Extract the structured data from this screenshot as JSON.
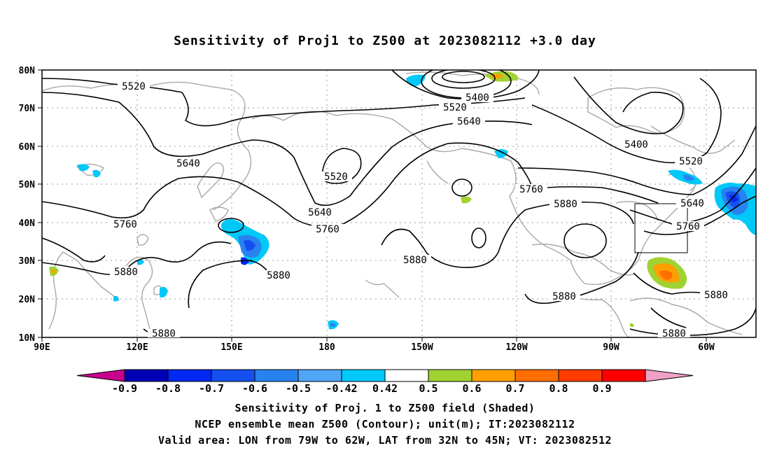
{
  "title": "Sensitivity of Proj1 to Z500 at 2023082112 +3.0 day",
  "lat_labels": [
    "80N",
    "70N",
    "60N",
    "50N",
    "40N",
    "30N",
    "20N",
    "10N"
  ],
  "lon_labels": [
    "90E",
    "120E",
    "150E",
    "180",
    "150W",
    "120W",
    "90W",
    "60W"
  ],
  "contour_labels": {
    "c5520a": "5520",
    "c5400a": "5400",
    "c5520b": "5520",
    "c5640a": "5640",
    "c5640b": "5640",
    "c5400b": "5400",
    "c5520c": "5520",
    "c5520d": "5520",
    "c5760a": "5760",
    "c5880a": "5880",
    "c5640c": "5640",
    "c5760b": "5760",
    "c5640d": "5640",
    "c5760c": "5760",
    "c5880b": "5880",
    "c5880c": "5880",
    "c5880d": "5880",
    "c5880e": "5880",
    "c5880f": "5880",
    "c5880g": "5880",
    "c5880h": "5880",
    "c5760d": "5760"
  },
  "colorbar": {
    "labels": [
      "-0.9",
      "-0.8",
      "-0.7",
      "-0.6",
      "-0.5",
      "-0.42",
      "0.42",
      "0.5",
      "0.6",
      "0.7",
      "0.8",
      "0.9"
    ],
    "colors": [
      "#c8008c",
      "#0000b4",
      "#0028f0",
      "#1450f0",
      "#2882f0",
      "#50a5f5",
      "#00c8f8",
      "#ffffff",
      "#a0d232",
      "#ffa000",
      "#ff6e00",
      "#ff3c00",
      "#ff0000",
      "#f0a0c8"
    ]
  },
  "captions": {
    "line1": "Sensitivity of Proj. 1 to Z500 field (Shaded)",
    "line2": "NCEP ensemble mean Z500 (Contour); unit(m); IT:2023082112",
    "line3": "Valid area: LON from 79W to 62W, LAT from 32N to 45N; VT: 2023082512"
  }
}
